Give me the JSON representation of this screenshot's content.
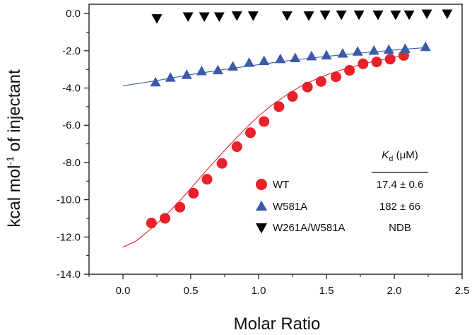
{
  "chart_data": {
    "type": "scatter",
    "xlabel": "Molar Ratio",
    "ylabel": {
      "prefix": "kcal mol",
      "sup": "-1",
      "suffix": " of injectant"
    },
    "xlim": [
      -0.25,
      2.5
    ],
    "ylim": [
      -14.0,
      0.5
    ],
    "xticks": [
      "0.0",
      "0.5",
      "1.0",
      "1.5",
      "2.0",
      "2.5"
    ],
    "yticks": [
      "0.0",
      "-2.0",
      "-4.0",
      "-6.0",
      "-8.0",
      "-10.0",
      "-12.0",
      "-14.0"
    ],
    "kd_header": {
      "symbol": "K",
      "sub": "d",
      "unit": " (μM)"
    },
    "series": [
      {
        "name": "WT",
        "marker": "circle",
        "color": "#e8202a",
        "kd": "17.4 ± 0.6",
        "x": [
          0.21,
          0.31,
          0.42,
          0.52,
          0.62,
          0.73,
          0.84,
          0.94,
          1.04,
          1.15,
          1.25,
          1.36,
          1.46,
          1.57,
          1.67,
          1.77,
          1.87,
          1.97,
          2.07
        ],
        "y": [
          -11.25,
          -11.0,
          -10.4,
          -9.65,
          -8.9,
          -8.05,
          -7.15,
          -6.4,
          -5.8,
          -5.0,
          -4.45,
          -3.95,
          -3.65,
          -3.4,
          -3.05,
          -2.7,
          -2.6,
          -2.45,
          -2.25
        ],
        "fit": {
          "x": [
            0.0,
            0.1,
            0.2,
            0.3,
            0.4,
            0.5,
            0.6,
            0.7,
            0.8,
            0.9,
            1.0,
            1.1,
            1.2,
            1.3,
            1.4,
            1.5,
            1.6,
            1.7,
            1.8,
            1.9,
            2.0,
            2.07
          ],
          "y": [
            -12.55,
            -12.2,
            -11.6,
            -10.95,
            -10.2,
            -9.4,
            -8.55,
            -7.75,
            -6.95,
            -6.2,
            -5.5,
            -4.9,
            -4.4,
            -3.95,
            -3.6,
            -3.3,
            -3.05,
            -2.85,
            -2.65,
            -2.5,
            -2.35,
            -2.25
          ]
        }
      },
      {
        "name": "W581A",
        "marker": "triangle-up",
        "color": "#3b5ba9",
        "kd": "182 ± 66",
        "x": [
          0.24,
          0.35,
          0.47,
          0.58,
          0.7,
          0.81,
          0.93,
          1.04,
          1.16,
          1.27,
          1.39,
          1.5,
          1.62,
          1.73,
          1.85,
          1.96,
          2.08,
          2.23
        ],
        "y": [
          -3.7,
          -3.45,
          -3.3,
          -3.1,
          -3.05,
          -2.85,
          -2.65,
          -2.55,
          -2.45,
          -2.4,
          -2.3,
          -2.25,
          -2.15,
          -2.05,
          -2.0,
          -1.95,
          -1.9,
          -1.8
        ],
        "fit": {
          "x": [
            0.0,
            0.25,
            0.5,
            0.75,
            1.0,
            1.25,
            1.5,
            1.75,
            2.0,
            2.25
          ],
          "y": [
            -3.88,
            -3.6,
            -3.28,
            -3.0,
            -2.74,
            -2.5,
            -2.3,
            -2.12,
            -1.96,
            -1.82
          ]
        }
      },
      {
        "name": "W261A/W581A",
        "marker": "triangle-down",
        "color": "#000000",
        "kd": "NDB",
        "x": [
          0.25,
          0.48,
          0.6,
          0.71,
          0.84,
          0.96,
          1.21,
          1.37,
          1.49,
          1.61,
          1.74,
          1.88,
          2.01,
          2.11,
          2.24,
          2.39
        ],
        "y": [
          -0.25,
          -0.15,
          -0.15,
          -0.15,
          -0.1,
          -0.1,
          -0.1,
          -0.1,
          -0.05,
          -0.05,
          -0.05,
          -0.05,
          -0.05,
          -0.05,
          0.0,
          0.0
        ]
      }
    ]
  }
}
